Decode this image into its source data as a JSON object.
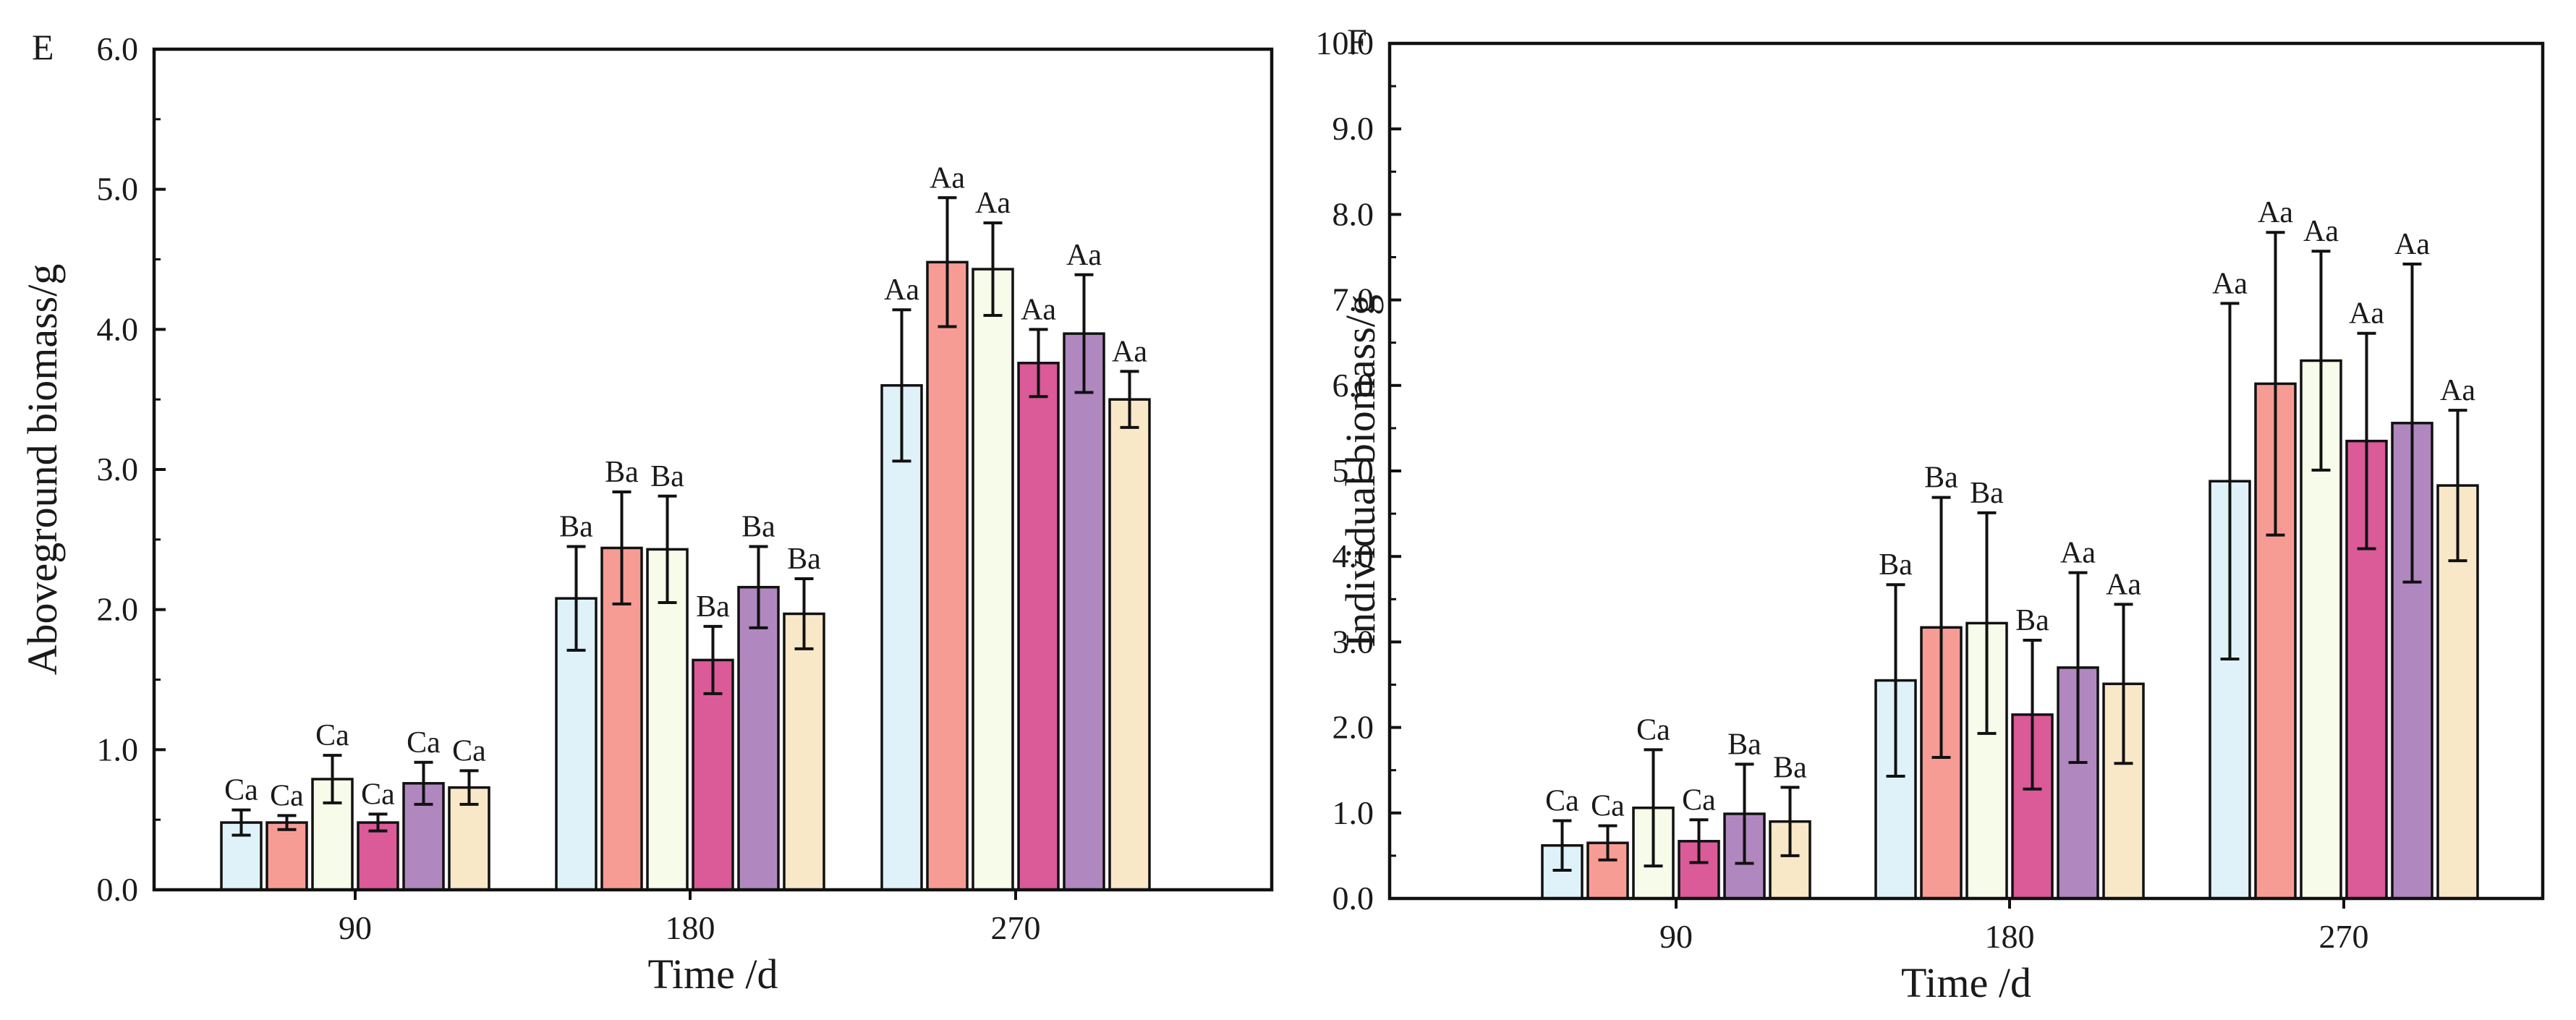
{
  "chart_data": [
    {
      "type": "bar",
      "panel_label": "E",
      "title": "",
      "xlabel": "Time /d",
      "ylabel": "Aboveground biomass/g",
      "categories": [
        "90",
        "180",
        "270"
      ],
      "ylim": [
        0,
        6.0
      ],
      "yticks": [
        "0.0",
        "1.0",
        "2.0",
        "3.0",
        "4.0",
        "5.0",
        "6.0"
      ],
      "colors": [
        "#dff2fa",
        "#f79c94",
        "#f6fbea",
        "#db5a98",
        "#b088bf",
        "#f8e8c8"
      ],
      "series": [
        {
          "name": "Series 1",
          "values": [
            0.48,
            2.08,
            3.6
          ],
          "errors": [
            0.09,
            0.37,
            0.54
          ],
          "labels": [
            "Ca",
            "Ba",
            "Aa"
          ]
        },
        {
          "name": "Series 2",
          "values": [
            0.48,
            2.44,
            4.48
          ],
          "errors": [
            0.05,
            0.4,
            0.46
          ],
          "labels": [
            "Ca",
            "Ba",
            "Aa"
          ]
        },
        {
          "name": "Series 3",
          "values": [
            0.79,
            2.43,
            4.43
          ],
          "errors": [
            0.17,
            0.38,
            0.33
          ],
          "labels": [
            "Ca",
            "Ba",
            "Aa"
          ]
        },
        {
          "name": "Series 4",
          "values": [
            0.48,
            1.64,
            3.76
          ],
          "errors": [
            0.06,
            0.24,
            0.24
          ],
          "labels": [
            "Ca",
            "Ba",
            "Aa"
          ]
        },
        {
          "name": "Series 5",
          "values": [
            0.76,
            2.16,
            3.97
          ],
          "errors": [
            0.15,
            0.29,
            0.42
          ],
          "labels": [
            "Ca",
            "Ba",
            "Aa"
          ]
        },
        {
          "name": "Series 6",
          "values": [
            0.73,
            1.97,
            3.5
          ],
          "errors": [
            0.12,
            0.25,
            0.2
          ],
          "labels": [
            "Ca",
            "Ba",
            "Aa"
          ]
        }
      ]
    },
    {
      "type": "bar",
      "panel_label": "F",
      "title": "",
      "xlabel": "Time /d",
      "ylabel": "Individual biomass/g",
      "categories": [
        "90",
        "180",
        "270"
      ],
      "ylim": [
        0,
        10.0
      ],
      "yticks": [
        "0.0",
        "1.0",
        "2.0",
        "3.0",
        "4.0",
        "5.0",
        "6.0",
        "7.0",
        "8.0",
        "9.0",
        "10.0"
      ],
      "colors": [
        "#dff2fa",
        "#f79c94",
        "#f6fbea",
        "#db5a98",
        "#b088bf",
        "#f8e8c8"
      ],
      "series": [
        {
          "name": "Series 1",
          "values": [
            0.62,
            2.55,
            4.88
          ],
          "errors": [
            0.29,
            1.12,
            2.08
          ],
          "labels": [
            "Ca",
            "Ba",
            "Aa"
          ]
        },
        {
          "name": "Series 2",
          "values": [
            0.65,
            3.17,
            6.02
          ],
          "errors": [
            0.2,
            1.52,
            1.77
          ],
          "labels": [
            "Ca",
            "Ba",
            "Aa"
          ]
        },
        {
          "name": "Series 3",
          "values": [
            1.06,
            3.22,
            6.29
          ],
          "errors": [
            0.68,
            1.29,
            1.28
          ],
          "labels": [
            "Ca",
            "Ba",
            "Aa"
          ]
        },
        {
          "name": "Series 4",
          "values": [
            0.67,
            2.15,
            5.35
          ],
          "errors": [
            0.25,
            0.87,
            1.26
          ],
          "labels": [
            "Ca",
            "Ba",
            "Aa"
          ]
        },
        {
          "name": "Series 5",
          "values": [
            0.99,
            2.7,
            5.56
          ],
          "errors": [
            0.58,
            1.11,
            1.86
          ],
          "labels": [
            "Ba",
            "Aa",
            "Aa"
          ]
        },
        {
          "name": "Series 6",
          "values": [
            0.9,
            2.51,
            4.83
          ],
          "errors": [
            0.4,
            0.93,
            0.88
          ],
          "labels": [
            "Ba",
            "Aa",
            "Aa"
          ]
        }
      ]
    }
  ]
}
